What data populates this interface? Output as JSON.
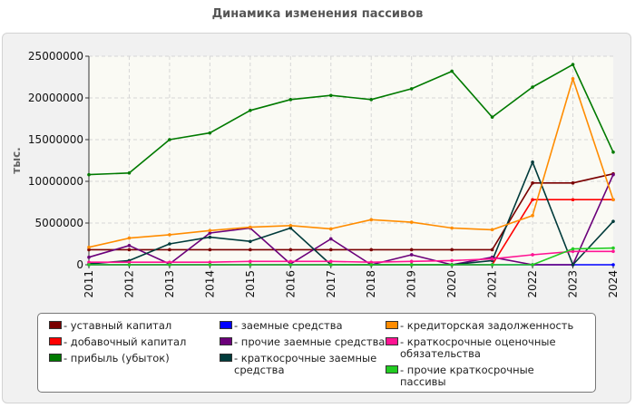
{
  "chart_data": {
    "type": "line",
    "title": "Динамика изменения пассивов",
    "ylabel": "тыс.",
    "xlabel": "",
    "ylim": [
      0,
      25000000
    ],
    "yticks": [
      0,
      5000000,
      10000000,
      15000000,
      20000000,
      25000000
    ],
    "ytick_labels": [
      "0",
      "5000000",
      "10000000",
      "15000000",
      "20000000",
      "25000000"
    ],
    "x": [
      "2011",
      "2012",
      "2013",
      "2014",
      "2015",
      "2016",
      "2017",
      "2018",
      "2019",
      "2020",
      "2021",
      "2022",
      "2023",
      "2024"
    ],
    "grid": true,
    "legend_position": "bottom",
    "series": [
      {
        "name": "уставный капитал",
        "color": "#7a0000",
        "values": [
          1800000,
          1800000,
          1800000,
          1800000,
          1800000,
          1800000,
          1800000,
          1800000,
          1800000,
          1800000,
          1800000,
          9800000,
          9800000,
          10900000
        ]
      },
      {
        "name": "добавочный капитал",
        "color": "#ff0000",
        "values": [
          0,
          0,
          0,
          0,
          0,
          0,
          0,
          0,
          0,
          0,
          0,
          7800000,
          7800000,
          7800000
        ]
      },
      {
        "name": "прибыль (убыток)",
        "color": "#007a00",
        "values": [
          10800000,
          11000000,
          15000000,
          15800000,
          18500000,
          19800000,
          20300000,
          19800000,
          21100000,
          23200000,
          17700000,
          21300000,
          24000000,
          13500000
        ]
      },
      {
        "name": "заемные средства",
        "color": "#0000ff",
        "values": [
          0,
          0,
          0,
          0,
          0,
          0,
          0,
          0,
          0,
          0,
          0,
          0,
          0,
          0
        ]
      },
      {
        "name": "прочие заемные средства",
        "color": "#6b007a",
        "values": [
          900000,
          2300000,
          100000,
          3800000,
          4400000,
          100000,
          3100000,
          0,
          1200000,
          0,
          900000,
          0,
          0,
          10800000
        ]
      },
      {
        "name": "краткосрочные заемные средства",
        "color": "#003b3b",
        "values": [
          100000,
          500000,
          2500000,
          3300000,
          2800000,
          4400000,
          0,
          0,
          0,
          0,
          500000,
          12300000,
          0,
          5200000
        ]
      },
      {
        "name": "кредиторская задолженность",
        "color": "#ff8c00",
        "values": [
          2100000,
          3200000,
          3600000,
          4100000,
          4500000,
          4700000,
          4300000,
          5400000,
          5100000,
          4400000,
          4200000,
          5900000,
          22300000,
          7800000
        ]
      },
      {
        "name": "краткосрочные оценочные обязательства",
        "color": "#ff1493",
        "values": [
          300000,
          300000,
          300000,
          300000,
          400000,
          400000,
          400000,
          300000,
          400000,
          500000,
          700000,
          1200000,
          1600000,
          1600000
        ]
      },
      {
        "name": "прочие краткосрочные пассивы",
        "color": "#22cc22",
        "values": [
          0,
          0,
          0,
          0,
          0,
          0,
          0,
          0,
          0,
          0,
          0,
          0,
          1900000,
          2000000
        ]
      }
    ]
  },
  "legend": {
    "items": [
      {
        "label": "- уставный капитал"
      },
      {
        "label": "- добавочный капитал"
      },
      {
        "label": "- прибыль (убыток)"
      },
      {
        "label": "- заемные средства"
      },
      {
        "label": "- прочие заемные средства"
      },
      {
        "label": "- краткосрочные заемные средства"
      },
      {
        "label": "- кредиторская задолженность"
      },
      {
        "label": "- краткосрочные оценочные обязательства"
      },
      {
        "label": "- прочие краткосрочные пассивы"
      }
    ]
  }
}
